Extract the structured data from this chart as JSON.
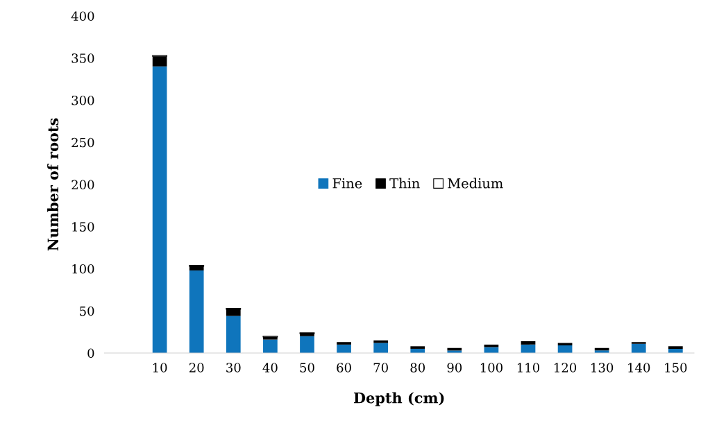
{
  "chart_data": {
    "type": "bar",
    "stacked": true,
    "xlabel": "Depth (cm)",
    "ylabel": "Number of roots",
    "categories": [
      null,
      "10",
      "20",
      "30",
      "40",
      "50",
      "60",
      "70",
      "80",
      "90",
      "100",
      "110",
      "120",
      "130",
      "140",
      "150"
    ],
    "series": [
      {
        "name": "Fine",
        "color": "#0f75bc",
        "values": [
          null,
          340,
          98,
          44,
          16,
          20,
          10,
          12,
          5,
          3,
          7,
          10,
          9,
          3,
          11,
          5
        ]
      },
      {
        "name": "Thin",
        "color": "#000000",
        "values": [
          null,
          12,
          5,
          8,
          3,
          3,
          3,
          3,
          3,
          3,
          3,
          4,
          3,
          3,
          2,
          3
        ]
      },
      {
        "name": "Medium",
        "color": "#ffffff",
        "values": [
          null,
          1,
          1,
          1,
          1,
          1,
          null,
          null,
          null,
          null,
          null,
          null,
          null,
          null,
          null,
          null
        ]
      }
    ],
    "ylim": [
      0,
      400
    ],
    "yticks": [
      0,
      50,
      100,
      150,
      200,
      250,
      300,
      350,
      400
    ],
    "grid": false,
    "legend": "center"
  }
}
